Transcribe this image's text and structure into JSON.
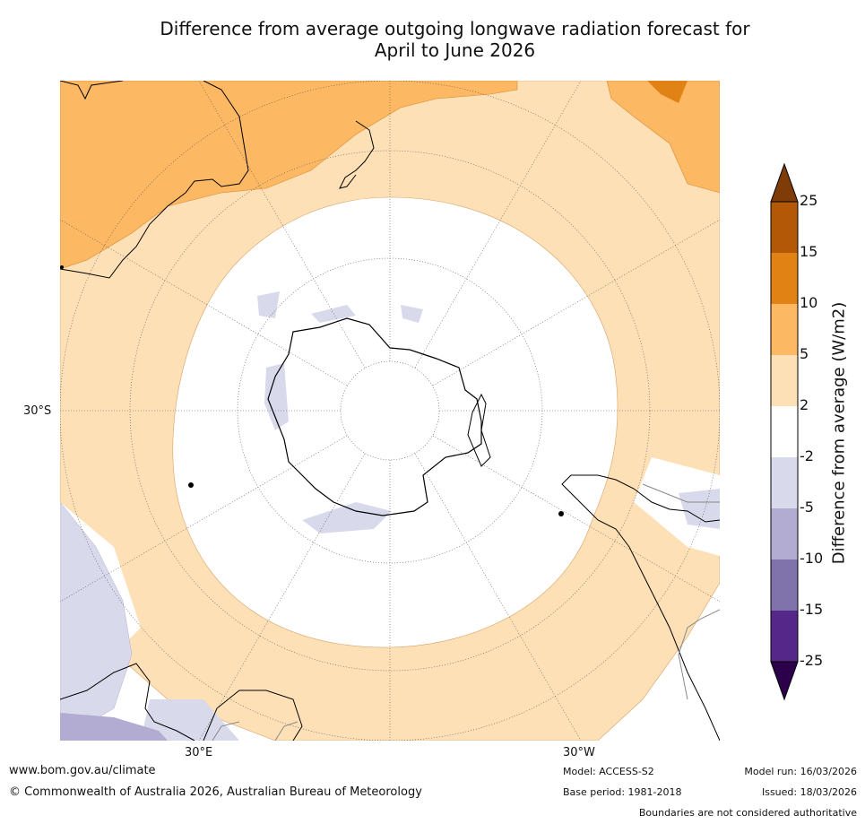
{
  "title": {
    "line1": "Difference from average outgoing longwave radiation forecast for",
    "line2": "April to June 2026"
  },
  "map": {
    "projection_labels": {
      "lat_left": "30°S",
      "lon_bottom_left": "30°E",
      "lon_bottom_right": "30°W"
    }
  },
  "colorbar": {
    "title": "Difference from average (W/m2)",
    "tick_labels": [
      "25",
      "15",
      "10",
      "5",
      "2",
      "-2",
      "-5",
      "-10",
      "-15",
      "-25"
    ],
    "colors": {
      "over": "#7f3b08",
      "15_25": "#b35806",
      "10_15": "#e08214",
      "5_10": "#fdb863",
      "2_5": "#fee0b6",
      "neutral": "#ffffff",
      "m5_m2": "#d8daeb",
      "m10_m5": "#b2abd2",
      "m15_m10": "#8073ac",
      "m25_m15": "#542788",
      "under": "#2d004b"
    }
  },
  "footer": {
    "website": "www.bom.gov.au/climate",
    "copyright": "© Commonwealth of Australia 2026, Australian Bureau of Meteorology",
    "model": "Model: ACCESS-S2",
    "base_period": "Base period: 1981-2018",
    "model_run": "Model run: 16/03/2026",
    "issued": "Issued: 18/03/2026",
    "disclaimer": "Boundaries are not considered authoritative"
  }
}
